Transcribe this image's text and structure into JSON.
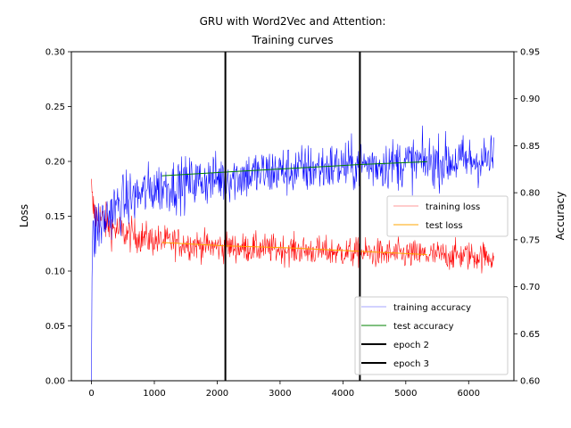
{
  "chart_data": {
    "type": "line",
    "title": "GRU with Word2Vec and Attention:",
    "subtitle": "Training curves",
    "xlabel": "",
    "ylabel_left": "Loss",
    "ylabel_right": "Accuracy",
    "colors": {
      "training_loss": "#ff0000",
      "test_loss": "#ffa500",
      "training_accuracy": "#0000ff",
      "test_accuracy": "#008000",
      "epoch": "#000000",
      "ylabel_left": "#ff0000",
      "ylabel_right": "#0000ff"
    },
    "x_ticks": [
      "0",
      "1000",
      "2000",
      "3000",
      "4000",
      "5000",
      "6000"
    ],
    "x_tick_values": [
      0,
      1000,
      2000,
      3000,
      4000,
      5000,
      6000
    ],
    "xlim": [
      -320,
      6720
    ],
    "ylim_left": [
      0.0,
      0.3
    ],
    "ylim_right": [
      0.6,
      0.95
    ],
    "y_left_ticks": [
      "0.00",
      "0.05",
      "0.10",
      "0.15",
      "0.20",
      "0.25",
      "0.30"
    ],
    "y_left_tick_values": [
      0.0,
      0.05,
      0.1,
      0.15,
      0.2,
      0.25,
      0.3
    ],
    "y_right_ticks": [
      "0.60",
      "0.65",
      "0.70",
      "0.75",
      "0.80",
      "0.85",
      "0.90",
      "0.95"
    ],
    "y_right_tick_values": [
      0.6,
      0.65,
      0.7,
      0.75,
      0.8,
      0.85,
      0.9,
      0.95
    ],
    "legends": [
      {
        "position": "center-right",
        "entries": [
          "training loss",
          "test loss"
        ]
      },
      {
        "position": "lower-right",
        "entries": [
          "training accuracy",
          "test accuracy",
          "epoch 2",
          "epoch 3"
        ]
      }
    ],
    "series": [
      {
        "name": "training loss",
        "axis": "left",
        "style": "noisy",
        "x": [
          0,
          10,
          30,
          60,
          100,
          200,
          300,
          500,
          1000,
          2000,
          3000,
          4000,
          5000,
          6000,
          6400
        ],
        "y": [
          0.17,
          0.16,
          0.155,
          0.152,
          0.15,
          0.145,
          0.14,
          0.135,
          0.128,
          0.122,
          0.12,
          0.117,
          0.115,
          0.114,
          0.113
        ],
        "noise_amplitude": [
          0.025,
          0.025,
          0.02,
          0.018,
          0.017,
          0.016,
          0.015,
          0.014,
          0.013,
          0.012,
          0.012,
          0.012,
          0.012,
          0.012,
          0.012
        ]
      },
      {
        "name": "test loss",
        "axis": "left",
        "style": "line",
        "x": [
          1130,
          2130,
          3200,
          4270,
          5330
        ],
        "y": [
          0.126,
          0.123,
          0.121,
          0.118,
          0.115
        ]
      },
      {
        "name": "training accuracy",
        "axis": "right",
        "style": "noisy",
        "x": [
          0,
          10,
          30,
          60,
          100,
          200,
          300,
          500,
          1000,
          2000,
          3000,
          4000,
          5000,
          6000,
          6400
        ],
        "y": [
          0.6,
          0.72,
          0.75,
          0.76,
          0.765,
          0.77,
          0.78,
          0.79,
          0.805,
          0.815,
          0.823,
          0.828,
          0.832,
          0.834,
          0.835
        ],
        "noise_amplitude": [
          0.0,
          0.04,
          0.035,
          0.032,
          0.03,
          0.028,
          0.027,
          0.026,
          0.025,
          0.024,
          0.024,
          0.024,
          0.024,
          0.024,
          0.024
        ]
      },
      {
        "name": "test accuracy",
        "axis": "right",
        "style": "line",
        "x": [
          1130,
          2130,
          3200,
          4270,
          5330
        ],
        "y": [
          0.818,
          0.822,
          0.826,
          0.83,
          0.833
        ]
      }
    ],
    "vertical_lines": [
      {
        "name": "epoch 2",
        "x": 2130
      },
      {
        "name": "epoch 3",
        "x": 4270
      }
    ],
    "grid": false
  }
}
